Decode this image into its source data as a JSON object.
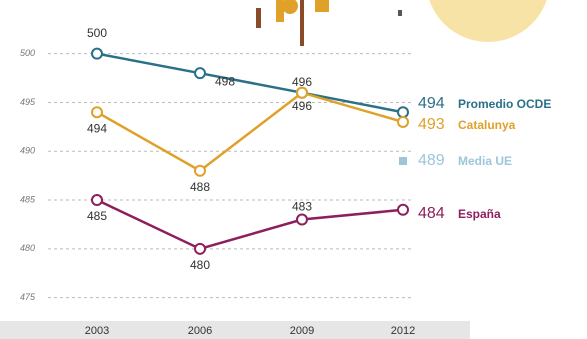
{
  "chart_data": {
    "type": "line",
    "categories": [
      "2003",
      "2006",
      "2009",
      "2012"
    ],
    "series": [
      {
        "name": "Promedio OCDE",
        "color": "#2a7088",
        "values": [
          500,
          498,
          496,
          494
        ]
      },
      {
        "name": "Catalunya",
        "color": "#e0a12a",
        "values": [
          494,
          488,
          496,
          493
        ]
      },
      {
        "name": "Media UE",
        "color": "#9cc6dc",
        "values": [
          null,
          null,
          null,
          489
        ],
        "marker": "square"
      },
      {
        "name": "España",
        "color": "#8c1f5c",
        "values": [
          485,
          480,
          483,
          484
        ]
      }
    ],
    "ylim": [
      472.5,
      505.5
    ],
    "yticks": [
      475,
      480,
      485,
      490,
      495,
      500
    ],
    "grid": true
  }
}
